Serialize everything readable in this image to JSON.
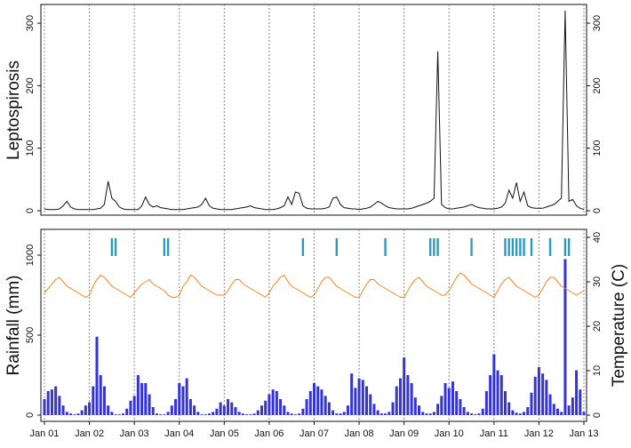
{
  "chart_data": [
    {
      "type": "line",
      "ylabel": "Leptospirosis",
      "color": "#111111",
      "x": [
        "Jan 01",
        "Feb 01",
        "Mar 01",
        "Apr 01",
        "May 01",
        "Jun 01",
        "Jul 01",
        "Aug 01",
        "Sep 01",
        "Oct 01",
        "Nov 01",
        "Dec 01",
        "Jan 02",
        "Feb 02",
        "Mar 02",
        "Apr 02",
        "May 02",
        "Jun 02",
        "Jul 02",
        "Aug 02",
        "Sep 02",
        "Oct 02",
        "Nov 02",
        "Dec 02",
        "Jan 03",
        "Feb 03",
        "Mar 03",
        "Apr 03",
        "May 03",
        "Jun 03",
        "Jul 03",
        "Aug 03",
        "Sep 03",
        "Oct 03",
        "Nov 03",
        "Dec 03",
        "Jan 04",
        "Feb 04",
        "Mar 04",
        "Apr 04",
        "May 04",
        "Jun 04",
        "Jul 04",
        "Aug 04",
        "Sep 04",
        "Oct 04",
        "Nov 04",
        "Dec 04",
        "Jan 05",
        "Feb 05",
        "Mar 05",
        "Apr 05",
        "May 05",
        "Jun 05",
        "Jul 05",
        "Aug 05",
        "Sep 05",
        "Oct 05",
        "Nov 05",
        "Dec 05",
        "Jan 06",
        "Feb 06",
        "Mar 06",
        "Apr 06",
        "May 06",
        "Jun 06",
        "Jul 06",
        "Aug 06",
        "Sep 06",
        "Oct 06",
        "Nov 06",
        "Dec 06",
        "Jan 07",
        "Feb 07",
        "Mar 07",
        "Apr 07",
        "May 07",
        "Jun 07",
        "Jul 07",
        "Aug 07",
        "Sep 07",
        "Oct 07",
        "Nov 07",
        "Dec 07",
        "Jan 08",
        "Feb 08",
        "Mar 08",
        "Apr 08",
        "May 08",
        "Jun 08",
        "Jul 08",
        "Aug 08",
        "Sep 08",
        "Oct 08",
        "Nov 08",
        "Dec 08",
        "Jan 09",
        "Feb 09",
        "Mar 09",
        "Apr 09",
        "May 09",
        "Jun 09",
        "Jul 09",
        "Aug 09",
        "Sep 09",
        "Oct 09",
        "Nov 09",
        "Dec 09",
        "Jan 10",
        "Feb 10",
        "Mar 10",
        "Apr 10",
        "May 10",
        "Jun 10",
        "Jul 10",
        "Aug 10",
        "Sep 10",
        "Oct 10",
        "Nov 10",
        "Dec 10",
        "Jan 11",
        "Feb 11",
        "Mar 11",
        "Apr 11",
        "May 11",
        "Jun 11",
        "Jul 11",
        "Aug 11",
        "Sep 11",
        "Oct 11",
        "Nov 11",
        "Dec 11",
        "Jan 12",
        "Feb 12",
        "Mar 12",
        "Apr 12",
        "May 12",
        "Jun 12",
        "Jul 12",
        "Aug 12",
        "Sep 12",
        "Oct 12",
        "Nov 12",
        "Dec 12",
        "Jan 13"
      ],
      "xticks": [
        "Jan 01",
        "Jan 02",
        "Jan 03",
        "Jan 04",
        "Jan 05",
        "Jan 06",
        "Jan 07",
        "Jan 08",
        "Jan 09",
        "Jan 10",
        "Jan 11",
        "Jan 12",
        "Jan 13"
      ],
      "values": [
        3,
        2,
        2,
        2,
        3,
        8,
        15,
        6,
        3,
        2,
        2,
        2,
        2,
        2,
        3,
        4,
        10,
        47,
        20,
        15,
        6,
        3,
        2,
        2,
        2,
        2,
        8,
        22,
        10,
        6,
        8,
        5,
        4,
        3,
        2,
        2,
        2,
        2,
        3,
        4,
        5,
        6,
        10,
        20,
        8,
        4,
        3,
        2,
        2,
        2,
        2,
        3,
        4,
        5,
        6,
        8,
        5,
        4,
        3,
        2,
        2,
        2,
        3,
        5,
        8,
        22,
        10,
        30,
        28,
        8,
        4,
        3,
        3,
        3,
        3,
        4,
        6,
        20,
        22,
        10,
        5,
        4,
        3,
        3,
        2,
        3,
        4,
        6,
        10,
        15,
        12,
        8,
        5,
        4,
        3,
        3,
        3,
        3,
        4,
        6,
        8,
        10,
        12,
        15,
        20,
        255,
        10,
        5,
        3,
        3,
        4,
        5,
        6,
        8,
        10,
        7,
        5,
        4,
        3,
        3,
        3,
        4,
        6,
        12,
        33,
        20,
        45,
        15,
        30,
        8,
        5,
        4,
        4,
        4,
        6,
        8,
        10,
        15,
        20,
        320,
        15,
        18,
        8,
        4,
        2
      ],
      "ylim": [
        -7,
        330
      ],
      "yticks": [
        0,
        100,
        200,
        300
      ],
      "grid": true
    },
    {
      "type": "combo",
      "ylabel": "Rainfall (mm)",
      "y2label": "Temperature (C)",
      "ylim": [
        -39,
        1161
      ],
      "yticks": [
        0,
        500,
        1000
      ],
      "y2lim": [
        -1.4,
        41.8
      ],
      "y2ticks": [
        0,
        10,
        20,
        30,
        40
      ],
      "series": [
        {
          "type": "bar",
          "color": "#3333dd",
          "values": [
            100,
            150,
            160,
            180,
            120,
            60,
            20,
            10,
            5,
            10,
            30,
            60,
            80,
            180,
            490,
            250,
            180,
            60,
            20,
            5,
            5,
            10,
            40,
            90,
            120,
            250,
            200,
            200,
            130,
            50,
            10,
            5,
            5,
            20,
            60,
            100,
            200,
            180,
            230,
            100,
            60,
            20,
            5,
            5,
            10,
            20,
            40,
            80,
            60,
            100,
            80,
            50,
            20,
            10,
            5,
            5,
            10,
            30,
            60,
            90,
            130,
            160,
            150,
            100,
            60,
            20,
            10,
            5,
            10,
            40,
            100,
            150,
            200,
            180,
            160,
            120,
            80,
            30,
            10,
            10,
            20,
            60,
            260,
            170,
            230,
            220,
            180,
            130,
            70,
            30,
            10,
            10,
            20,
            80,
            180,
            230,
            360,
            250,
            200,
            110,
            60,
            20,
            10,
            10,
            20,
            70,
            120,
            200,
            170,
            210,
            150,
            100,
            50,
            20,
            10,
            5,
            10,
            40,
            150,
            250,
            380,
            280,
            250,
            150,
            80,
            30,
            15,
            10,
            20,
            50,
            140,
            240,
            300,
            260,
            220,
            130,
            70,
            40,
            20,
            975,
            60,
            110,
            280,
            160,
            20
          ]
        },
        {
          "type": "line",
          "axis": "y2",
          "color": "#ee8822",
          "values": [
            27.5,
            28.5,
            29.5,
            30.5,
            31,
            30,
            29,
            28.5,
            28,
            27.5,
            27,
            26.5,
            27,
            29,
            30.5,
            31.5,
            31,
            30,
            29,
            28.5,
            28,
            27.5,
            27,
            26.5,
            27.5,
            28.5,
            29.5,
            30,
            30.5,
            29.5,
            29,
            28.5,
            28,
            27,
            26.5,
            26.5,
            27,
            29,
            30,
            31.5,
            31,
            30,
            29,
            28.5,
            28,
            27.5,
            27,
            27,
            27,
            28,
            29.5,
            30.5,
            30.5,
            29.5,
            29,
            28.5,
            28,
            27.5,
            27,
            26.5,
            27.5,
            29,
            30,
            31,
            31.5,
            30,
            29,
            28.5,
            28,
            27.5,
            27,
            26.5,
            27,
            28.5,
            30,
            31,
            31,
            30,
            29,
            28.5,
            28,
            27.5,
            27,
            26.5,
            26.5,
            28,
            29.5,
            30.5,
            30.5,
            29.5,
            29,
            28.5,
            28,
            27.5,
            27,
            26.5,
            26.5,
            28,
            29.5,
            30.5,
            31,
            30,
            29,
            28.5,
            28,
            27.5,
            27,
            27,
            28,
            29.5,
            31,
            32,
            31.5,
            30.5,
            29.5,
            29,
            28.5,
            28,
            27.5,
            27,
            26.5,
            28,
            29.5,
            30.5,
            31,
            30,
            29,
            28.5,
            28,
            27.5,
            27,
            26.5,
            27,
            28.5,
            30,
            31,
            31,
            30,
            29,
            28.5,
            28,
            27.5,
            27,
            27.5,
            28
          ]
        }
      ],
      "events": {
        "color": "#2a9bbf",
        "x": [
          "Jul 02",
          "Aug 02",
          "Sep 03",
          "Oct 03",
          "Oct 06",
          "Jul 07",
          "Aug 08",
          "Aug 09",
          "Sep 09",
          "Oct 09",
          "Jul 10",
          "Apr 11",
          "May 11",
          "Jun 11",
          "Jul 11",
          "Aug 11",
          "Sep 11",
          "Nov 11",
          "Apr 12",
          "Aug 12",
          "Sep 12"
        ]
      }
    }
  ]
}
